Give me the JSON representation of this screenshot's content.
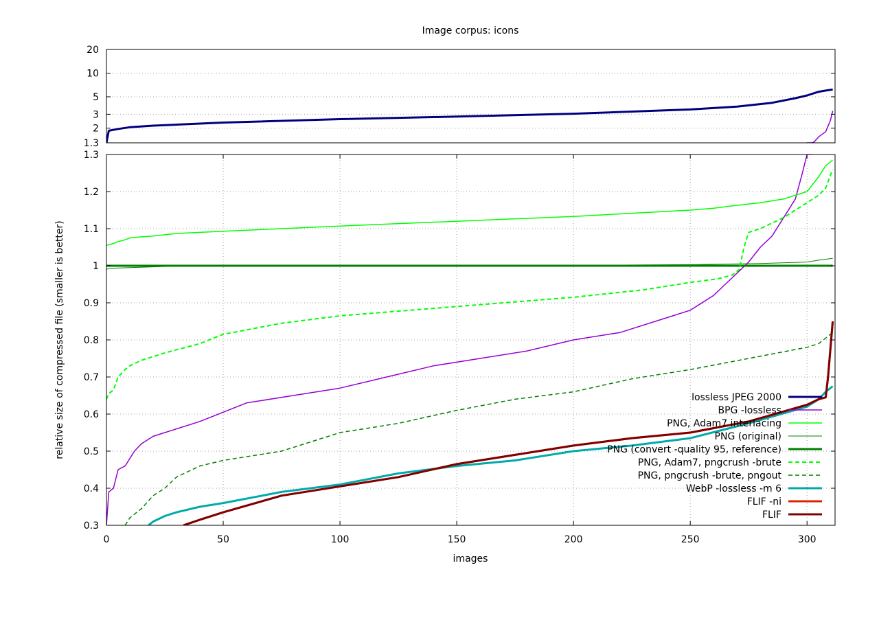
{
  "chart_data": {
    "type": "line",
    "title": "Image corpus: icons",
    "xlabel": "images",
    "ylabel": "relative size of compressed file (smaller is better)",
    "x_ticks": [
      0,
      50,
      100,
      150,
      200,
      250,
      300
    ],
    "xlim": [
      0,
      312
    ],
    "grid": true,
    "legend_position": "bottom-right",
    "panels": {
      "top": {
        "scale": "log",
        "ylim": [
          1.3,
          20
        ],
        "y_ticks": [
          1.3,
          2,
          3,
          5,
          10,
          20
        ],
        "y_tick_labels": [
          "1.3",
          "2",
          "3",
          "5",
          "10",
          "20"
        ]
      },
      "bottom": {
        "scale": "linear",
        "ylim": [
          0.3,
          1.3
        ],
        "y_ticks": [
          0.3,
          0.4,
          0.5,
          0.6,
          0.7,
          0.8,
          0.9,
          1,
          1.1,
          1.2,
          1.3
        ],
        "y_tick_labels": [
          "0.3",
          "0.4",
          "0.5",
          "0.6",
          "0.7",
          "0.8",
          "0.9",
          "1",
          "1.1",
          "1.2",
          "1.3"
        ]
      }
    },
    "series": [
      {
        "name": "lossless JPEG 2000",
        "color": "#00007f",
        "width": 3,
        "dash": "solid",
        "x": [
          0,
          1,
          5,
          10,
          20,
          50,
          100,
          150,
          200,
          250,
          270,
          285,
          295,
          300,
          305,
          308,
          311
        ],
        "y": [
          1.3,
          1.85,
          1.95,
          2.05,
          2.15,
          2.35,
          2.6,
          2.8,
          3.05,
          3.45,
          3.75,
          4.2,
          4.8,
          5.2,
          5.8,
          6.0,
          6.2
        ]
      },
      {
        "name": "BPG -lossless",
        "color": "#9400d3",
        "width": 1.5,
        "dash": "solid",
        "x": [
          0,
          1,
          3,
          5,
          8,
          10,
          12,
          15,
          20,
          25,
          40,
          60,
          80,
          100,
          120,
          140,
          160,
          180,
          200,
          220,
          240,
          250,
          260,
          265,
          270,
          275,
          280,
          285,
          290,
          295,
          298,
          300,
          302,
          303,
          305,
          308,
          310,
          311
        ],
        "y": [
          0.3,
          0.39,
          0.4,
          0.45,
          0.46,
          0.48,
          0.5,
          0.52,
          0.54,
          0.55,
          0.58,
          0.63,
          0.65,
          0.67,
          0.7,
          0.73,
          0.75,
          0.77,
          0.8,
          0.82,
          0.86,
          0.88,
          0.92,
          0.95,
          0.98,
          1.01,
          1.05,
          1.08,
          1.13,
          1.18,
          1.25,
          1.3,
          1.3,
          1.33,
          1.55,
          1.8,
          2.5,
          3.3
        ]
      },
      {
        "name": "PNG, Adam7 interlacing",
        "color": "#00ff00",
        "width": 1.5,
        "dash": "solid",
        "x": [
          0,
          3,
          5,
          8,
          10,
          15,
          20,
          30,
          50,
          100,
          150,
          200,
          250,
          260,
          270,
          280,
          290,
          295,
          300,
          305,
          308,
          311
        ],
        "y": [
          1.055,
          1.06,
          1.065,
          1.07,
          1.075,
          1.078,
          1.08,
          1.087,
          1.093,
          1.107,
          1.12,
          1.133,
          1.15,
          1.155,
          1.163,
          1.17,
          1.18,
          1.19,
          1.2,
          1.24,
          1.27,
          1.285
        ]
      },
      {
        "name": "PNG (original)",
        "color": "#008000",
        "width": 1,
        "dash": "solid",
        "x": [
          0,
          1,
          10,
          20,
          30,
          50,
          100,
          150,
          200,
          250,
          280,
          300,
          305,
          311
        ],
        "y": [
          0.99,
          0.993,
          0.995,
          0.997,
          0.999,
          1.0,
          1.0,
          1.0,
          1.001,
          1.003,
          1.006,
          1.01,
          1.015,
          1.02
        ]
      },
      {
        "name": "PNG (convert -quality 95, reference)",
        "color": "#008000",
        "width": 3,
        "dash": "solid",
        "x": [
          0,
          311
        ],
        "y": [
          1.0,
          1.0
        ]
      },
      {
        "name": "PNG, Adam7, pngcrush -brute",
        "color": "#00ff00",
        "width": 2,
        "dash": "dashed",
        "x": [
          0,
          1,
          3,
          5,
          8,
          10,
          15,
          25,
          40,
          50,
          75,
          100,
          150,
          180,
          200,
          230,
          250,
          262,
          268,
          271,
          273,
          275,
          280,
          290,
          300,
          305,
          308,
          311
        ],
        "y": [
          0.64,
          0.655,
          0.665,
          0.7,
          0.72,
          0.73,
          0.745,
          0.765,
          0.79,
          0.815,
          0.845,
          0.865,
          0.89,
          0.905,
          0.915,
          0.935,
          0.955,
          0.965,
          0.975,
          0.99,
          1.05,
          1.09,
          1.1,
          1.13,
          1.17,
          1.19,
          1.21,
          1.26
        ]
      },
      {
        "name": "PNG, pngcrush -brute, pngout",
        "color": "#008000",
        "width": 1.5,
        "dash": "dashed",
        "x": [
          8,
          10,
          15,
          20,
          25,
          30,
          40,
          50,
          75,
          100,
          125,
          150,
          175,
          200,
          225,
          250,
          275,
          300,
          305,
          311
        ],
        "y": [
          0.3,
          0.32,
          0.345,
          0.38,
          0.4,
          0.43,
          0.46,
          0.475,
          0.5,
          0.55,
          0.575,
          0.61,
          0.64,
          0.66,
          0.695,
          0.72,
          0.75,
          0.78,
          0.79,
          0.82
        ]
      },
      {
        "name": "WebP -lossless -m 6",
        "color": "#00aaaa",
        "width": 3,
        "dash": "solid",
        "x": [
          18,
          20,
          25,
          30,
          40,
          50,
          75,
          100,
          125,
          150,
          175,
          200,
          225,
          250,
          275,
          300,
          305,
          308,
          311
        ],
        "y": [
          0.3,
          0.31,
          0.325,
          0.335,
          0.35,
          0.36,
          0.39,
          0.41,
          0.44,
          0.46,
          0.475,
          0.5,
          0.515,
          0.535,
          0.575,
          0.62,
          0.64,
          0.66,
          0.675
        ]
      },
      {
        "name": "FLIF -ni",
        "color": "#dd2200",
        "width": 3,
        "dash": "solid",
        "x": [
          33,
          40,
          50,
          75,
          100,
          125,
          150,
          175,
          200,
          225,
          250,
          275,
          300,
          305,
          308,
          309,
          311
        ],
        "y": [
          0.3,
          0.315,
          0.335,
          0.38,
          0.405,
          0.43,
          0.465,
          0.49,
          0.515,
          0.535,
          0.55,
          0.58,
          0.625,
          0.64,
          0.645,
          0.7,
          0.85
        ]
      },
      {
        "name": "FLIF",
        "color": "#7f0000",
        "width": 3,
        "dash": "solid",
        "x": [
          33,
          40,
          50,
          75,
          100,
          125,
          150,
          175,
          200,
          225,
          250,
          275,
          300,
          305,
          308,
          309,
          311
        ],
        "y": [
          0.3,
          0.315,
          0.335,
          0.38,
          0.405,
          0.43,
          0.465,
          0.49,
          0.515,
          0.535,
          0.55,
          0.58,
          0.625,
          0.64,
          0.645,
          0.7,
          0.85
        ]
      }
    ]
  }
}
